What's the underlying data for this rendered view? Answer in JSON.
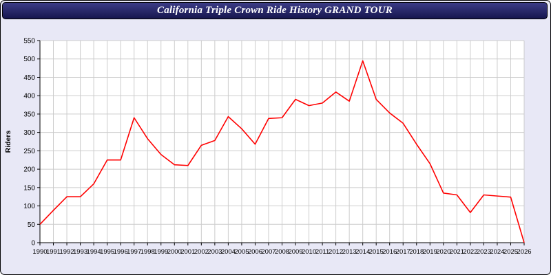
{
  "window": {
    "title": "California Triple Crown Ride History GRAND TOUR"
  },
  "chart_data": {
    "type": "line",
    "title": "California Triple Crown Ride History GRAND TOUR",
    "xlabel": "",
    "ylabel": "Riders",
    "ylim": [
      0,
      550
    ],
    "ytick_step": 50,
    "grid": true,
    "legend": "none",
    "plot_bg": "#ffffff",
    "grid_color": "#cccccc",
    "axis_color": "#000000",
    "x": [
      1990,
      1991,
      1992,
      1993,
      1994,
      1995,
      1996,
      1997,
      1998,
      1999,
      2000,
      2001,
      2002,
      2003,
      2004,
      2005,
      2006,
      2007,
      2008,
      2009,
      2010,
      2011,
      2012,
      2013,
      2014,
      2015,
      2016,
      2017,
      2018,
      2019,
      2020,
      2021,
      2022,
      2023,
      2024,
      2025,
      2026
    ],
    "series": [
      {
        "name": "Riders",
        "color": "#ff0000",
        "values": [
          50,
          88,
          125,
          125,
          160,
          225,
          225,
          340,
          283,
          240,
          212,
          210,
          265,
          278,
          343,
          310,
          268,
          338,
          340,
          390,
          373,
          380,
          410,
          385,
          495,
          390,
          353,
          325,
          268,
          215,
          135,
          130,
          82,
          130,
          127,
          124,
          0
        ]
      }
    ]
  }
}
